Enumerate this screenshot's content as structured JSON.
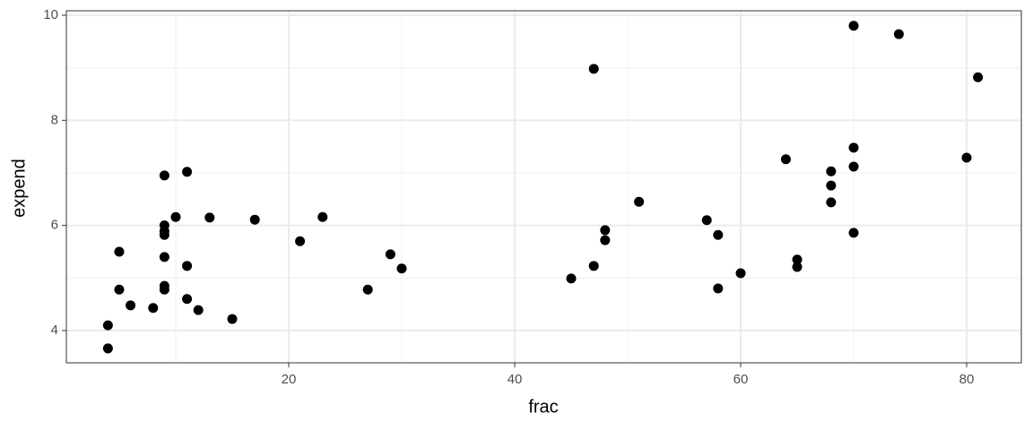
{
  "chart_data": {
    "type": "scatter",
    "x_label": "frac",
    "y_label": "expend",
    "xlim": [
      0.32,
      84.84
    ],
    "ylim": [
      3.386,
      10.085
    ],
    "xticks": [
      20,
      40,
      60,
      80
    ],
    "yticks": [
      4,
      6,
      8,
      10
    ],
    "x_minor_grid": [
      10,
      30,
      50,
      70
    ],
    "y_minor_grid": [
      5,
      7,
      9
    ],
    "grid": true,
    "color": "#000000",
    "series": [
      {
        "name": "expend",
        "x": [
          4,
          4,
          5,
          5,
          6,
          8,
          9,
          9,
          9,
          9,
          9,
          9,
          9,
          10,
          11,
          11,
          11,
          12,
          13,
          15,
          17,
          21,
          23,
          27,
          29,
          30,
          45,
          47,
          47,
          48,
          48,
          51,
          57,
          58,
          58,
          60,
          64,
          65,
          65,
          68,
          68,
          68,
          70,
          70,
          70,
          70,
          74,
          80,
          81
        ],
        "values": [
          3.66,
          4.1,
          5.5,
          4.78,
          4.48,
          4.43,
          6.95,
          6.0,
          5.89,
          5.82,
          5.4,
          4.85,
          4.78,
          6.16,
          7.02,
          5.23,
          4.6,
          4.39,
          6.15,
          4.22,
          6.11,
          5.7,
          6.16,
          4.78,
          5.45,
          5.18,
          4.99,
          8.98,
          5.23,
          5.91,
          5.72,
          6.45,
          6.1,
          5.82,
          4.8,
          5.09,
          7.26,
          5.35,
          5.21,
          7.03,
          6.76,
          6.44,
          9.8,
          7.48,
          7.12,
          5.86,
          9.64,
          7.29,
          8.82
        ]
      }
    ]
  }
}
